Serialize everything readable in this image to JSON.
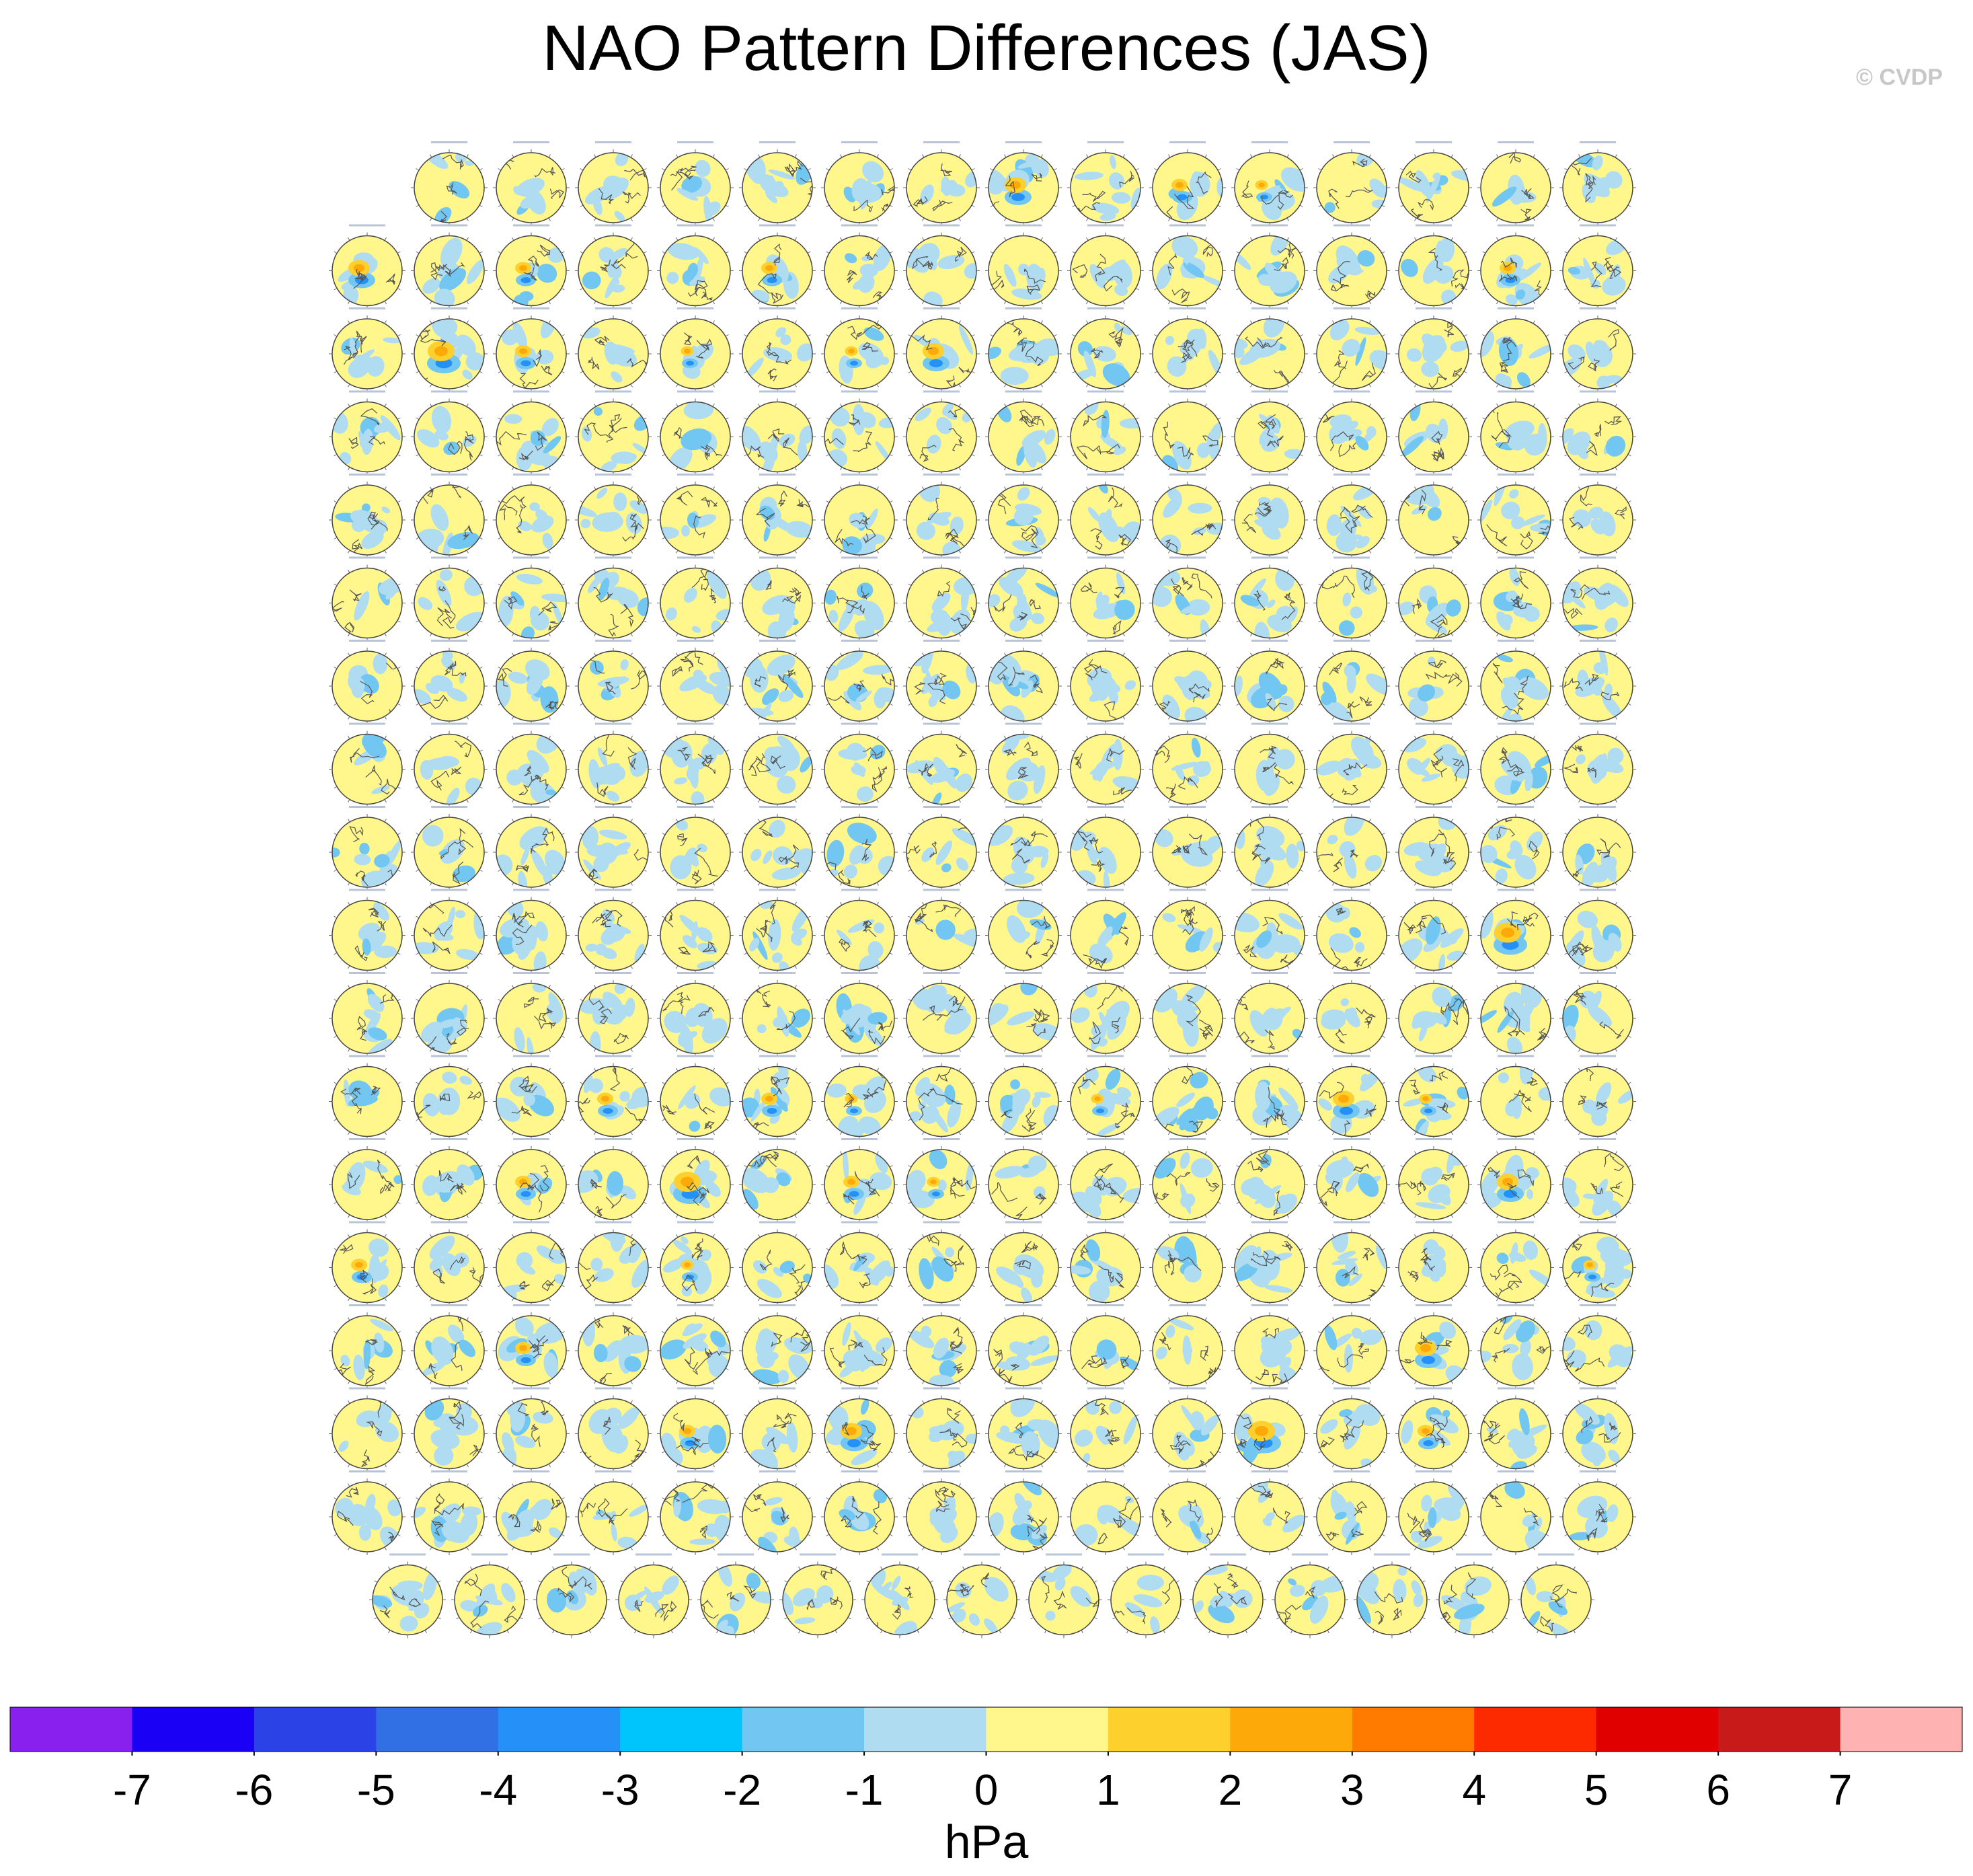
{
  "title": "NAO Pattern Differences (JAS)",
  "copyright": "© CVDP",
  "chart_data": {
    "type": "heatmap",
    "title": "NAO Pattern Differences (JAS)",
    "panel_rows": [
      15,
      16,
      16,
      16,
      16,
      16,
      16,
      16,
      16,
      16,
      16,
      16,
      16,
      16,
      16,
      16,
      16,
      15
    ],
    "panel_count": 286,
    "strong_anomaly_panels": [
      [
        0,
        7,
        2
      ],
      [
        0,
        9,
        1.5
      ],
      [
        0,
        10,
        1.2
      ],
      [
        1,
        0,
        2
      ],
      [
        1,
        2,
        1.5
      ],
      [
        1,
        5,
        1.5
      ],
      [
        1,
        14,
        1.5
      ],
      [
        2,
        1,
        2.5
      ],
      [
        2,
        2,
        1.5
      ],
      [
        2,
        4,
        1.2
      ],
      [
        2,
        6,
        1.2
      ],
      [
        2,
        7,
        2
      ],
      [
        9,
        14,
        2.5
      ],
      [
        11,
        3,
        1.5
      ],
      [
        11,
        5,
        1.5
      ],
      [
        11,
        6,
        1.2
      ],
      [
        11,
        9,
        1.2
      ],
      [
        11,
        12,
        2
      ],
      [
        11,
        13,
        1.2
      ],
      [
        12,
        2,
        1.5
      ],
      [
        12,
        4,
        2.5
      ],
      [
        12,
        6,
        1.5
      ],
      [
        12,
        7,
        1.2
      ],
      [
        12,
        14,
        2
      ],
      [
        13,
        0,
        1.5
      ],
      [
        13,
        4,
        1.2
      ],
      [
        13,
        15,
        1.2
      ],
      [
        14,
        2,
        1.5
      ],
      [
        14,
        13,
        2
      ],
      [
        15,
        4,
        1.5
      ],
      [
        15,
        6,
        2
      ],
      [
        15,
        11,
        2.5
      ],
      [
        15,
        13,
        1.5
      ]
    ],
    "colorbar": {
      "label": "hPa",
      "ticks": [
        "-7",
        "-6",
        "-5",
        "-4",
        "-3",
        "-2",
        "-1",
        "0",
        "1",
        "2",
        "3",
        "4",
        "5",
        "6",
        "7"
      ],
      "colors": [
        "#8a20ee",
        "#1a00f5",
        "#2b43e6",
        "#3070e4",
        "#2591f8",
        "#00c5fd",
        "#72c6f2",
        "#b0dcf2",
        "#fff68c",
        "#fed02d",
        "#fea90a",
        "#fe7b00",
        "#fd2a00",
        "#e00000",
        "#c91a1a",
        "#feb2b2"
      ]
    }
  }
}
